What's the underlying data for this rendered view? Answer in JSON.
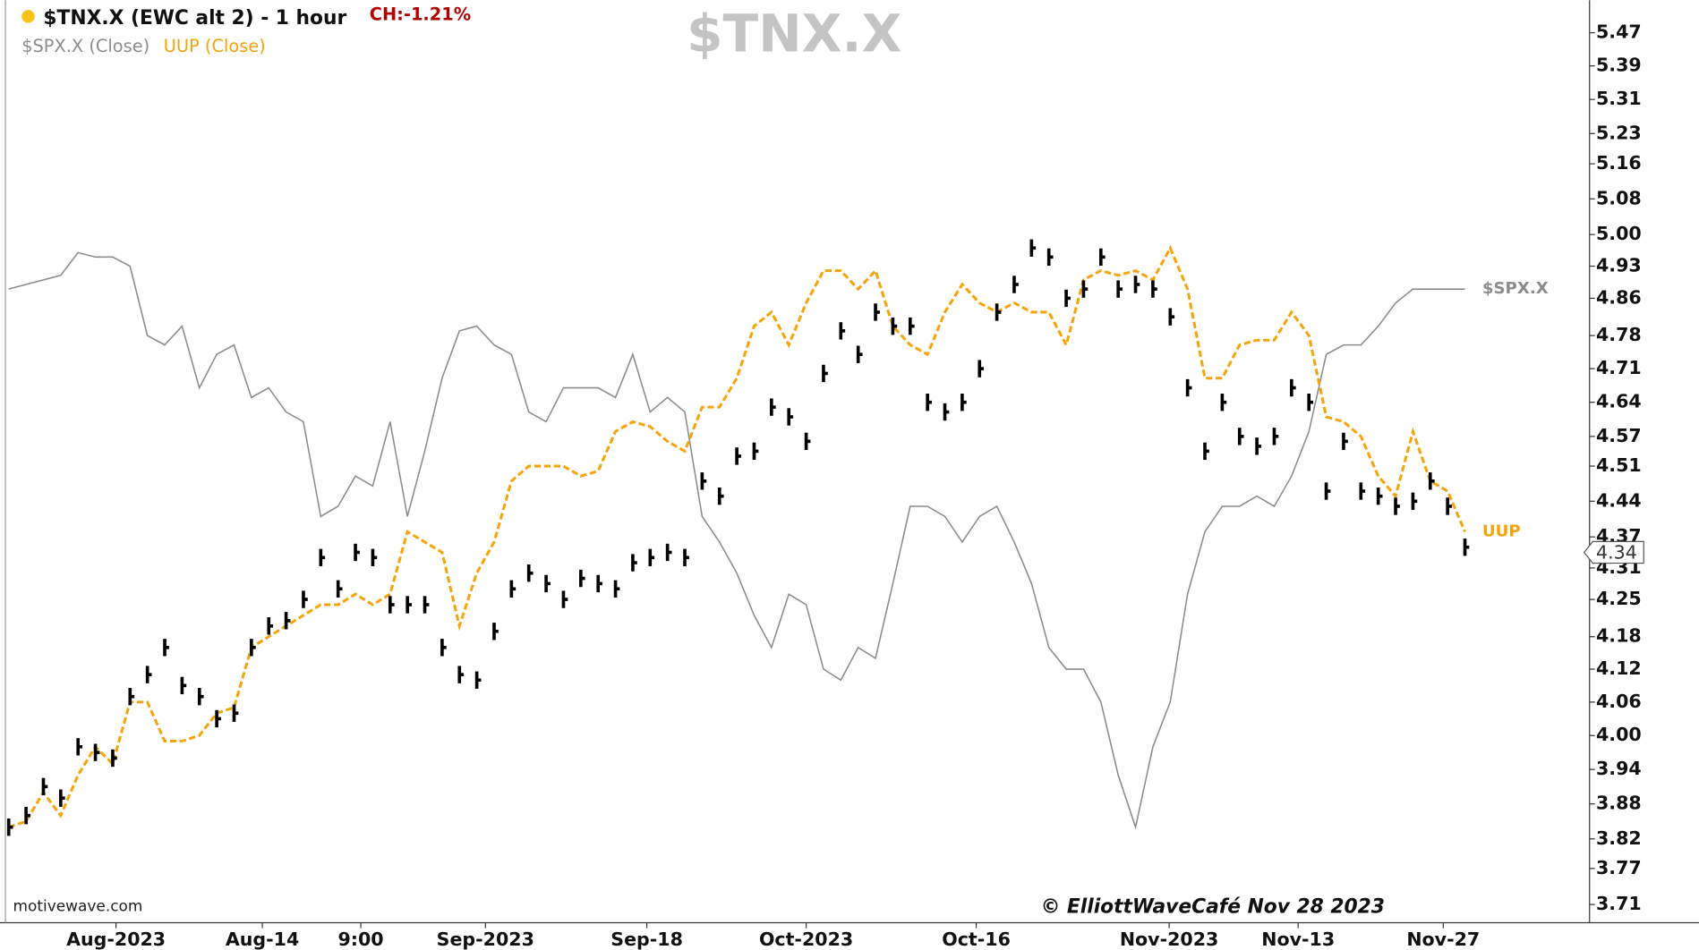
{
  "chart_data": {
    "type": "line",
    "title": "$TNX.X (EWC alt 2) - 1 hour",
    "change": "CH:-1.21%",
    "watermark": "$TNX.X",
    "legend": [
      "$SPX.X (Close)",
      "UUP (Close)"
    ],
    "source": "motivewave.com",
    "copyright": "© ElliottWaveCafé Nov 28 2023",
    "last_value": 4.34,
    "log_scale": true,
    "ylim": [
      3.68,
      5.55
    ],
    "yticks": [
      3.71,
      3.77,
      3.82,
      3.88,
      3.94,
      {
        "value": 4.0,
        "label": "4.00"
      },
      4.06,
      4.12,
      4.18,
      4.25,
      4.31,
      4.37,
      4.44,
      4.51,
      4.57,
      4.64,
      4.71,
      4.78,
      4.86,
      4.93,
      {
        "value": 5.0,
        "label": "5.00"
      },
      5.08,
      5.16,
      5.23,
      5.31,
      5.39,
      5.47
    ],
    "xlim": [
      -0.19,
      91.19
    ],
    "xticks": [
      {
        "value": 6.19,
        "label": "Aug-2023"
      },
      {
        "value": 14.63,
        "label": "Aug-14"
      },
      {
        "value": 20.31,
        "label": "9:00"
      },
      {
        "value": 27.5,
        "label": "Sep-2023"
      },
      {
        "value": 36.81,
        "label": "Sep-18"
      },
      {
        "value": 46,
        "label": "Oct-2023"
      },
      {
        "value": 55.81,
        "label": "Oct-16"
      },
      {
        "value": 66.94,
        "label": "Nov-2023"
      },
      {
        "value": 74.38,
        "label": "Nov-13"
      },
      {
        "value": 82.75,
        "label": "Nov-27"
      }
    ],
    "series": [
      {
        "name": "$TNX.X",
        "color": "#000000",
        "style": "bars",
        "values": [
          3.84,
          3.86,
          3.91,
          3.89,
          3.98,
          3.97,
          3.96,
          4.07,
          4.11,
          4.16,
          4.09,
          4.07,
          4.03,
          4.04,
          4.16,
          4.2,
          4.21,
          4.25,
          4.33,
          4.27,
          4.34,
          4.33,
          4.24,
          4.24,
          4.24,
          4.16,
          4.11,
          4.1,
          4.19,
          4.27,
          4.3,
          4.28,
          4.25,
          4.29,
          4.28,
          4.27,
          4.32,
          4.33,
          4.34,
          4.33,
          4.48,
          4.45,
          4.53,
          4.54,
          4.63,
          4.61,
          4.56,
          4.7,
          4.79,
          4.74,
          4.83,
          4.8,
          4.8,
          4.64,
          4.62,
          4.64,
          4.71,
          4.83,
          4.89,
          4.97,
          4.95,
          4.86,
          4.88,
          4.95,
          4.88,
          4.89,
          4.88,
          4.82,
          4.67,
          4.54,
          4.64,
          4.57,
          4.55,
          4.57,
          4.67,
          4.64,
          4.46,
          4.56,
          4.46,
          4.45,
          4.43,
          4.44,
          4.48,
          4.43,
          4.35
        ]
      },
      {
        "name": "$SPX.X",
        "color": "#8c8c8c",
        "style": "solid",
        "values": [
          4.88,
          4.89,
          4.9,
          4.91,
          4.96,
          4.95,
          4.95,
          4.93,
          4.78,
          4.76,
          4.8,
          4.67,
          4.74,
          4.76,
          4.65,
          4.67,
          4.62,
          4.6,
          4.41,
          4.43,
          4.49,
          4.47,
          4.6,
          4.41,
          4.54,
          4.69,
          4.79,
          4.8,
          4.76,
          4.74,
          4.62,
          4.6,
          4.67,
          4.67,
          4.67,
          4.65,
          4.74,
          4.62,
          4.65,
          4.62,
          4.41,
          4.36,
          4.3,
          4.22,
          4.16,
          4.26,
          4.24,
          4.12,
          4.1,
          4.16,
          4.14,
          4.28,
          4.43,
          4.43,
          4.41,
          4.36,
          4.41,
          4.43,
          4.36,
          4.28,
          4.16,
          4.12,
          4.12,
          4.06,
          3.93,
          3.84,
          3.98,
          4.06,
          4.26,
          4.38,
          4.43,
          4.43,
          4.45,
          4.43,
          4.49,
          4.58,
          4.74,
          4.76,
          4.76,
          4.8,
          4.85,
          4.88,
          4.88,
          4.88,
          4.88
        ]
      },
      {
        "name": "UUP",
        "color": "#f5a40c",
        "style": "dashed",
        "values": [
          3.84,
          3.85,
          3.9,
          3.86,
          3.93,
          3.98,
          3.95,
          4.06,
          4.06,
          3.99,
          3.99,
          4.0,
          4.04,
          4.05,
          4.16,
          4.18,
          4.2,
          4.22,
          4.24,
          4.24,
          4.26,
          4.24,
          4.26,
          4.38,
          4.36,
          4.34,
          4.2,
          4.3,
          4.36,
          4.48,
          4.51,
          4.51,
          4.51,
          4.49,
          4.5,
          4.58,
          4.6,
          4.59,
          4.56,
          4.54,
          4.63,
          4.63,
          4.69,
          4.8,
          4.83,
          4.76,
          4.85,
          4.92,
          4.92,
          4.88,
          4.92,
          4.8,
          4.76,
          4.74,
          4.83,
          4.89,
          4.85,
          4.83,
          4.85,
          4.83,
          4.83,
          4.76,
          4.9,
          4.92,
          4.91,
          4.92,
          4.9,
          4.97,
          4.88,
          4.69,
          4.69,
          4.76,
          4.77,
          4.77,
          4.83,
          4.78,
          4.61,
          4.6,
          4.57,
          4.49,
          4.45,
          4.58,
          4.48,
          4.46,
          4.38
        ]
      }
    ]
  }
}
